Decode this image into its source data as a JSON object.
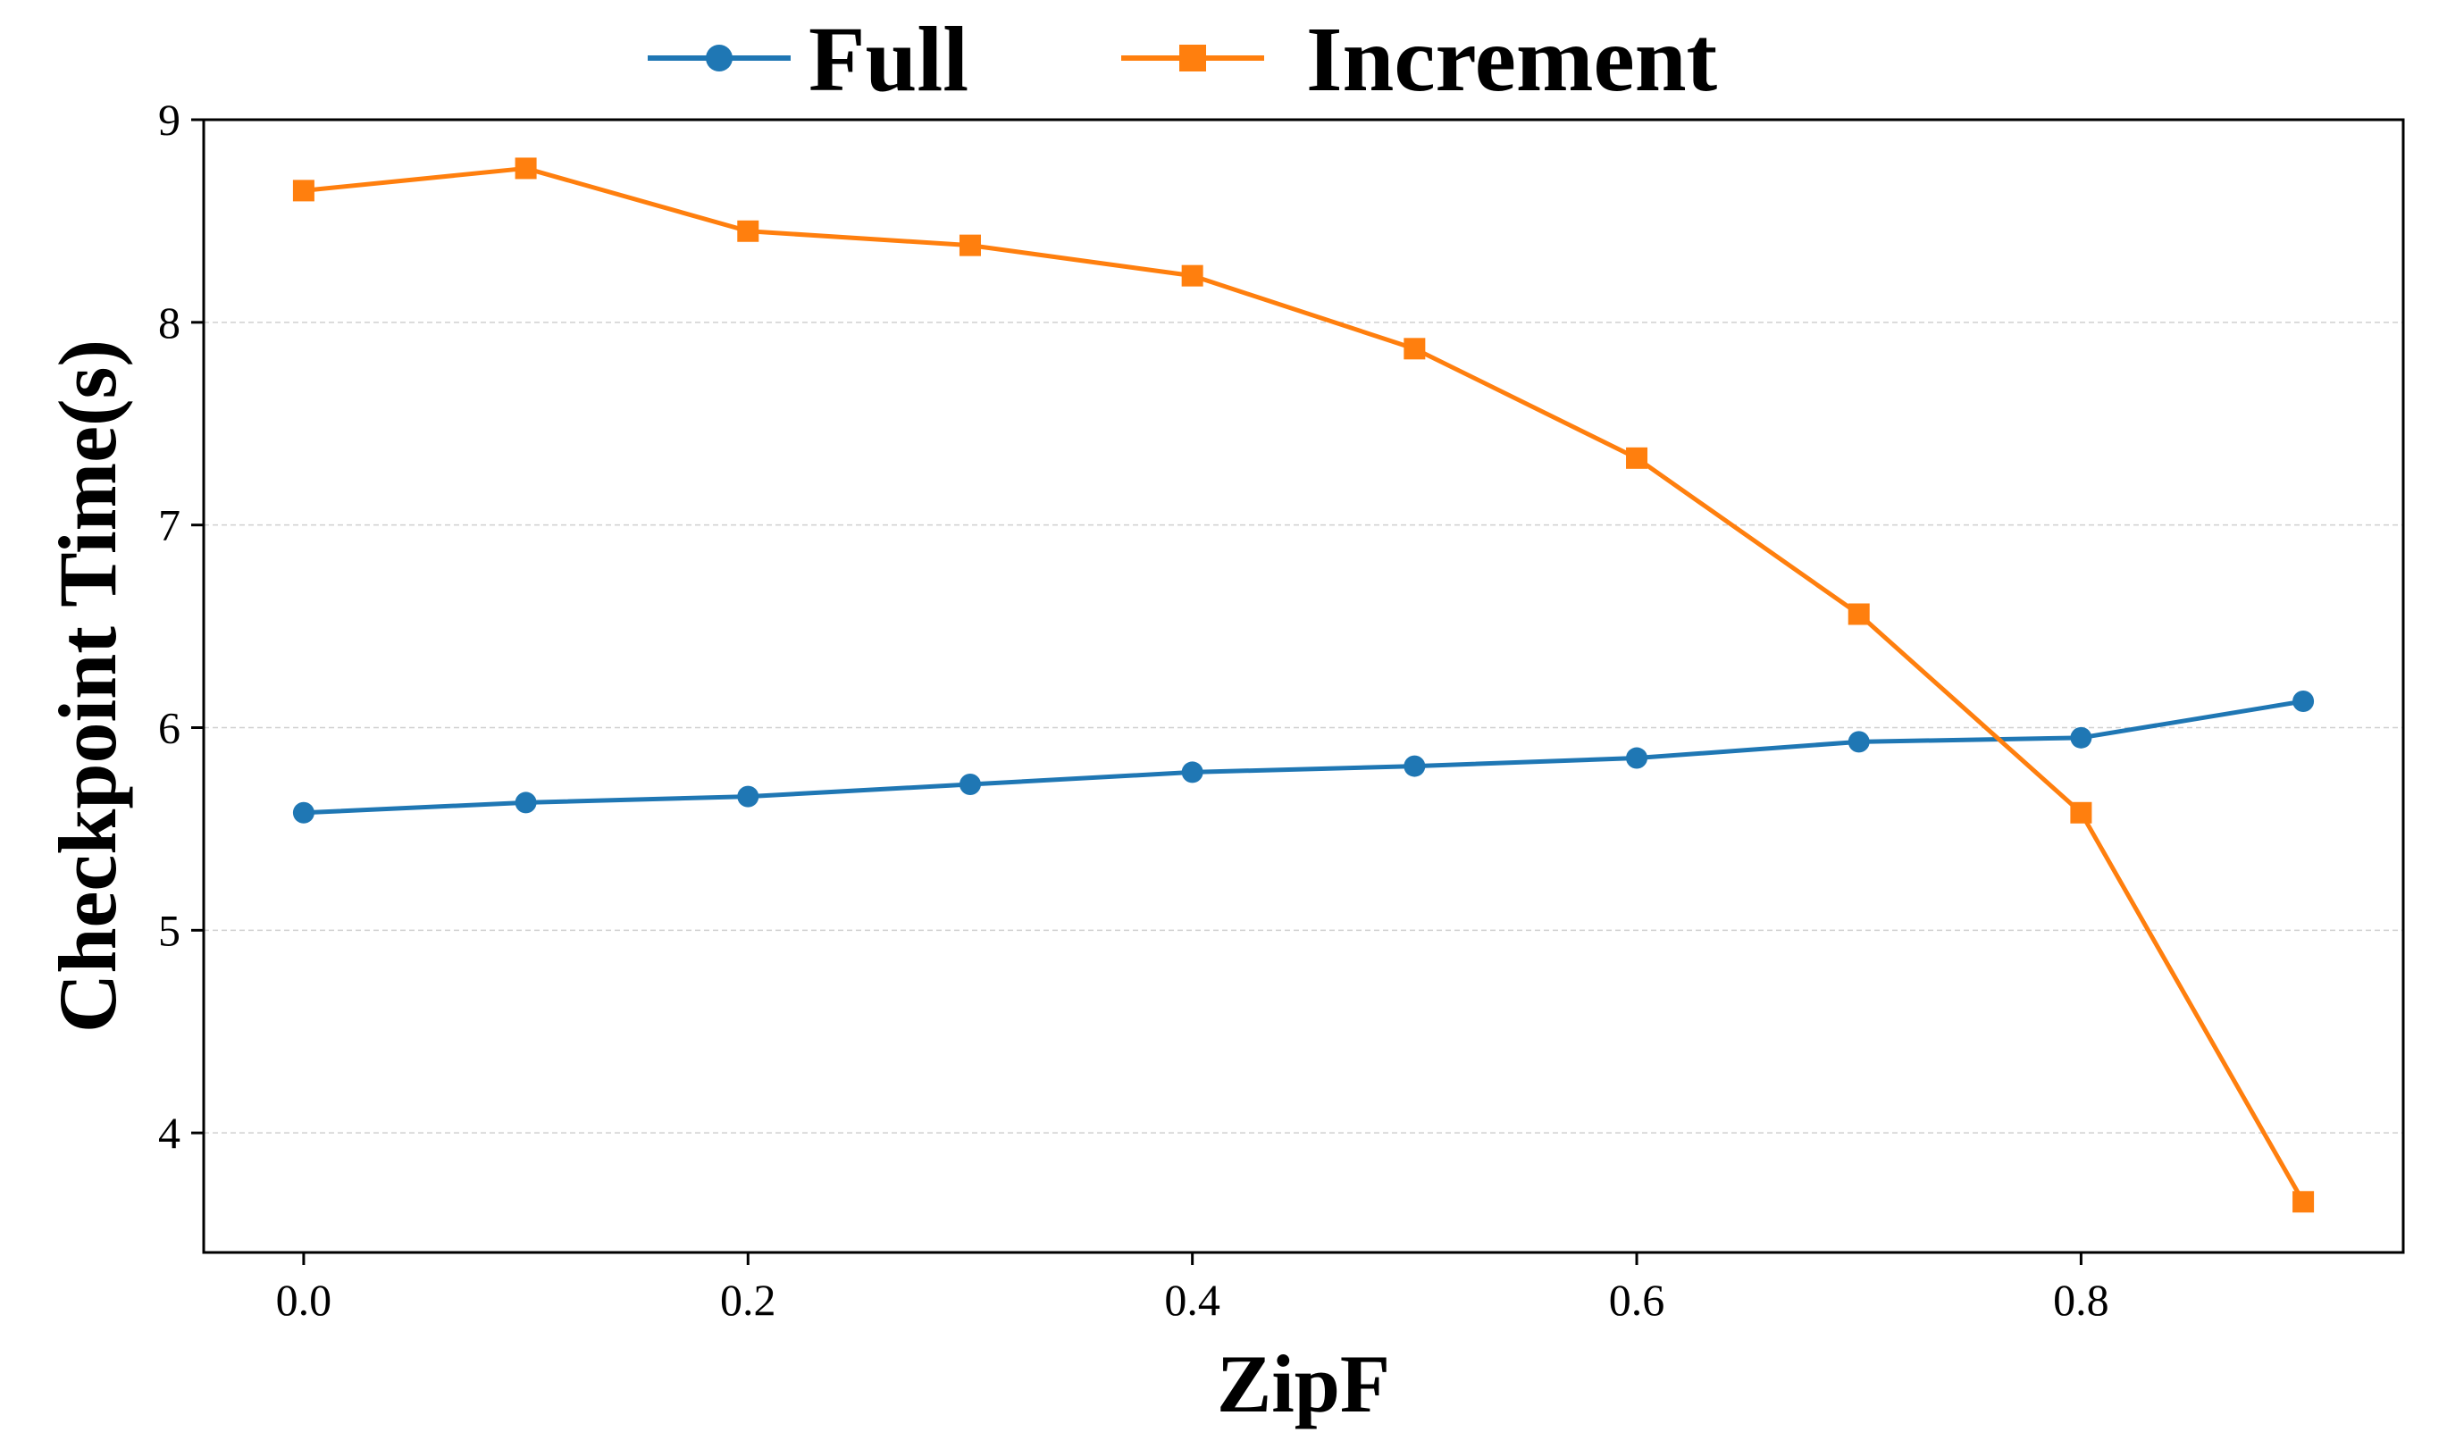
{
  "chart_data": {
    "type": "line",
    "title": "",
    "xlabel": "ZipF",
    "ylabel": "Checkpoint Time(s)",
    "xlim": [
      -0.045,
      0.945
    ],
    "ylim": [
      3.41,
      9.0
    ],
    "x_ticks": [
      "0.0",
      "0.2",
      "0.4",
      "0.6",
      "0.8"
    ],
    "x_tick_values": [
      0.0,
      0.2,
      0.4,
      0.6,
      0.8
    ],
    "y_ticks": [
      "4",
      "5",
      "6",
      "7",
      "8",
      "9"
    ],
    "y_tick_values": [
      4,
      5,
      6,
      7,
      8,
      9
    ],
    "grid": "horizontal dashed",
    "legend_position": "top-center",
    "x": [
      0.0,
      0.1,
      0.2,
      0.3,
      0.4,
      0.5,
      0.6,
      0.7,
      0.8,
      0.9
    ],
    "series": [
      {
        "name": "Full",
        "color": "#1f77b4",
        "marker": "circle",
        "values": [
          5.58,
          5.63,
          5.66,
          5.72,
          5.78,
          5.81,
          5.85,
          5.93,
          5.95,
          6.13
        ]
      },
      {
        "name": "Increment",
        "color": "#ff7f0e",
        "marker": "square",
        "values": [
          8.65,
          8.76,
          8.45,
          8.38,
          8.23,
          7.87,
          7.33,
          6.56,
          5.58,
          3.66
        ]
      }
    ]
  }
}
